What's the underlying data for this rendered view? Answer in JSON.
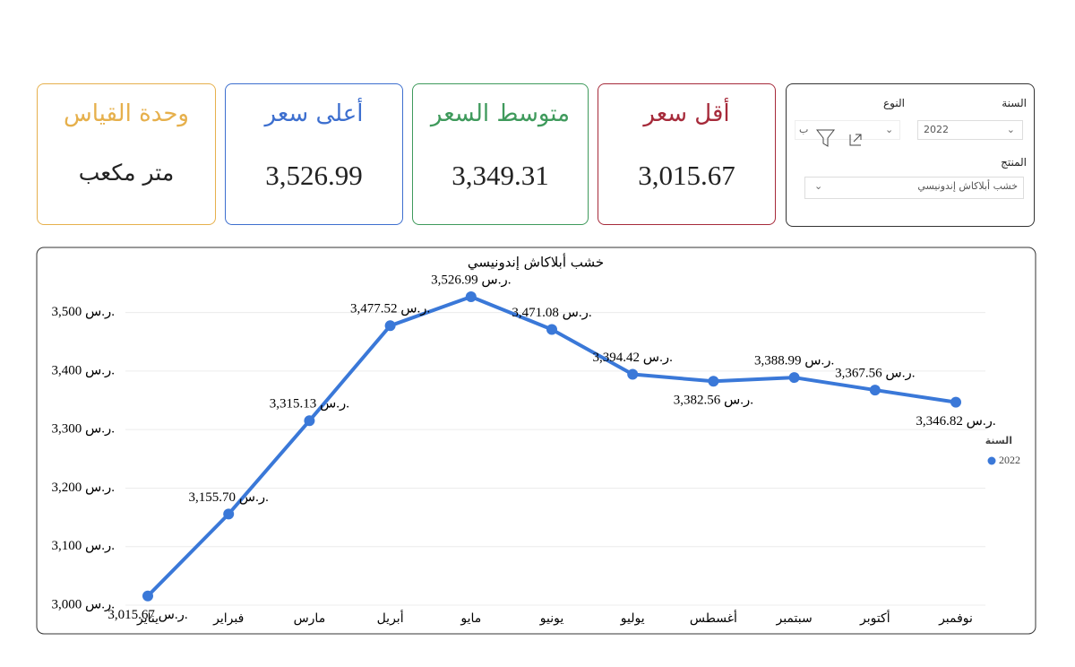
{
  "filters": {
    "year_label": "السنة",
    "year_value": "2022",
    "type_label": "النوع",
    "type_value": "ب",
    "product_label": "المنتج",
    "product_value": "خشب أبلاكاش إندونيسي"
  },
  "cards": [
    {
      "title": "وحدة القياس",
      "value": "متر مكعب",
      "color": "#e6b04c"
    },
    {
      "title": "أعلى سعر",
      "value": "3,526.99",
      "color": "#3d6fcf"
    },
    {
      "title": "متوسط السعر",
      "value": "3,349.31",
      "color": "#3f9a5c"
    },
    {
      "title": "أقل سعر",
      "value": "3,015.67",
      "color": "#a62a3a"
    }
  ],
  "chart_data": {
    "type": "line",
    "title": "خشب أبلاكاش إندونيسي",
    "categories": [
      "يناير",
      "فبراير",
      "مارس",
      "أبريل",
      "مايو",
      "يونيو",
      "يوليو",
      "أغسطس",
      "سبتمبر",
      "أكتوبر",
      "نوفمبر"
    ],
    "series": [
      {
        "name": "2022",
        "color": "#3a78d8",
        "values": [
          3015.67,
          3155.7,
          3315.13,
          3477.52,
          3526.99,
          3471.08,
          3394.42,
          3382.56,
          3388.99,
          3367.56,
          3346.82
        ],
        "value_labels": [
          "3,015.67 ر.س.",
          "3,155.70 ر.س.",
          "3,315.13 ر.س.",
          "3,477.52 ر.س.",
          "3,526.99 ر.س.",
          "3,471.08 ر.س.",
          "3,394.42 ر.س.",
          "3,382.56 ر.س.",
          "3,388.99 ر.س.",
          "3,367.56 ر.س.",
          "3,346.82 ر.س."
        ]
      }
    ],
    "legend_title": "السنة",
    "ylim": [
      3000,
      3550
    ],
    "yticks": [
      {
        "value": 3000,
        "label": "3,000 ر.س."
      },
      {
        "value": 3100,
        "label": "3,100 ر.س."
      },
      {
        "value": 3200,
        "label": "3,200 ر.س."
      },
      {
        "value": 3300,
        "label": "3,300 ر.س."
      },
      {
        "value": 3400,
        "label": "3,400 ر.س."
      },
      {
        "value": 3500,
        "label": "3,500 ر.س."
      }
    ],
    "grid": true
  }
}
